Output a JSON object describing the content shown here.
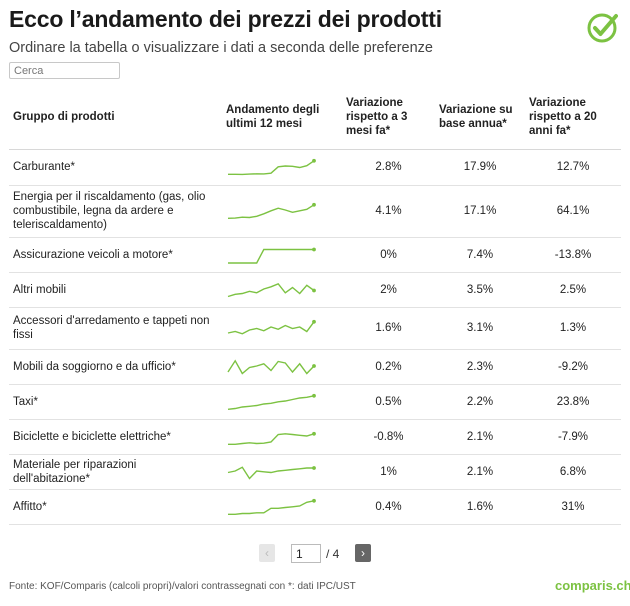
{
  "title": "Ecco l’andamento dei prezzi dei prodotti",
  "subtitle": "Ordinare la tabella o visualizzare i dati a seconda delle preferenze",
  "logo": {
    "icon": "checkmark-circle-icon",
    "color": "#7cc242"
  },
  "search": {
    "placeholder": "Cerca",
    "value": ""
  },
  "accent_color": "#7cc242",
  "table": {
    "headers": {
      "group": "Gruppo di prodotti",
      "trend": "Andamento degli ultimi 12 mesi",
      "change_3m": "Variazione rispetto a 3 mesi fa*",
      "change_year": "Variazione su base annua*",
      "change_20y": "Variazione rispetto a 20 anni fa*"
    },
    "rows": [
      {
        "group": "Carburante*",
        "change_3m": "2.8%",
        "change_year": "17.9%",
        "change_20y": "12.7%",
        "trend": [
          0.05,
          0.05,
          0.04,
          0.06,
          0.08,
          0.07,
          0.12,
          0.55,
          0.6,
          0.58,
          0.5,
          0.62,
          0.95
        ]
      },
      {
        "group": "Energia per il riscaldamento (gas, olio combustibile, legna da ardere e teleriscaldamento)",
        "change_3m": "4.1%",
        "change_year": "17.1%",
        "change_20y": "64.1%",
        "trend": [
          0.05,
          0.06,
          0.12,
          0.1,
          0.18,
          0.35,
          0.55,
          0.72,
          0.6,
          0.45,
          0.55,
          0.65,
          0.95
        ]
      },
      {
        "group": "Assicurazione veicoli a motore*",
        "change_3m": "0%",
        "change_year": "7.4%",
        "change_20y": "-13.8%",
        "trend": [
          0,
          0,
          0,
          0,
          0,
          0.9,
          0.9,
          0.9,
          0.9,
          0.9,
          0.9,
          0.9,
          0.9
        ]
      },
      {
        "group": "Altri mobili",
        "change_3m": "2%",
        "change_year": "3.5%",
        "change_20y": "2.5%",
        "trend": [
          0.1,
          0.25,
          0.3,
          0.45,
          0.35,
          0.6,
          0.75,
          0.95,
          0.35,
          0.7,
          0.3,
          0.85,
          0.5
        ]
      },
      {
        "group": "Accessori d'arredamento e tappeti non fissi",
        "change_3m": "1.6%",
        "change_year": "3.1%",
        "change_20y": "1.3%",
        "trend": [
          0.2,
          0.3,
          0.15,
          0.4,
          0.5,
          0.35,
          0.6,
          0.45,
          0.7,
          0.5,
          0.6,
          0.3,
          0.95
        ]
      },
      {
        "group": "Mobili da soggiorno e da ufficio*",
        "change_3m": "0.2%",
        "change_year": "2.3%",
        "change_20y": "-9.2%",
        "trend": [
          0.2,
          0.95,
          0.1,
          0.5,
          0.6,
          0.75,
          0.3,
          0.9,
          0.8,
          0.2,
          0.75,
          0.1,
          0.6
        ]
      },
      {
        "group": "Taxi*",
        "change_3m": "0.5%",
        "change_year": "2.2%",
        "change_20y": "23.8%",
        "trend": [
          0.05,
          0.1,
          0.2,
          0.25,
          0.3,
          0.4,
          0.45,
          0.55,
          0.6,
          0.7,
          0.8,
          0.85,
          0.95
        ]
      },
      {
        "group": "Biciclette e biciclette elettriche*",
        "change_3m": "-0.8%",
        "change_year": "2.1%",
        "change_20y": "-7.9%",
        "trend": [
          0.05,
          0.05,
          0.1,
          0.15,
          0.1,
          0.12,
          0.2,
          0.7,
          0.75,
          0.7,
          0.65,
          0.6,
          0.75
        ]
      },
      {
        "group": "Materiale per riparazioni dell'abitazione*",
        "change_3m": "1%",
        "change_year": "2.1%",
        "change_20y": "6.8%",
        "trend": [
          0.5,
          0.6,
          0.85,
          0.1,
          0.6,
          0.55,
          0.5,
          0.6,
          0.65,
          0.7,
          0.75,
          0.8,
          0.8
        ]
      },
      {
        "group": "Affitto*",
        "change_3m": "0.4%",
        "change_year": "1.6%",
        "change_20y": "31%",
        "trend": [
          0.05,
          0.05,
          0.1,
          0.1,
          0.15,
          0.15,
          0.45,
          0.45,
          0.5,
          0.55,
          0.6,
          0.85,
          0.95
        ]
      }
    ]
  },
  "pagination": {
    "prev_icon": "chevron-left-icon",
    "prev_label": "‹",
    "next_label": "›",
    "current": "1",
    "total_label": "/ 4"
  },
  "footer": {
    "source": "Fonte: KOF/Comparis (calcoli propri)/valori contrassegnati con *: dati IPC/UST",
    "brand": "comparis.ch"
  }
}
